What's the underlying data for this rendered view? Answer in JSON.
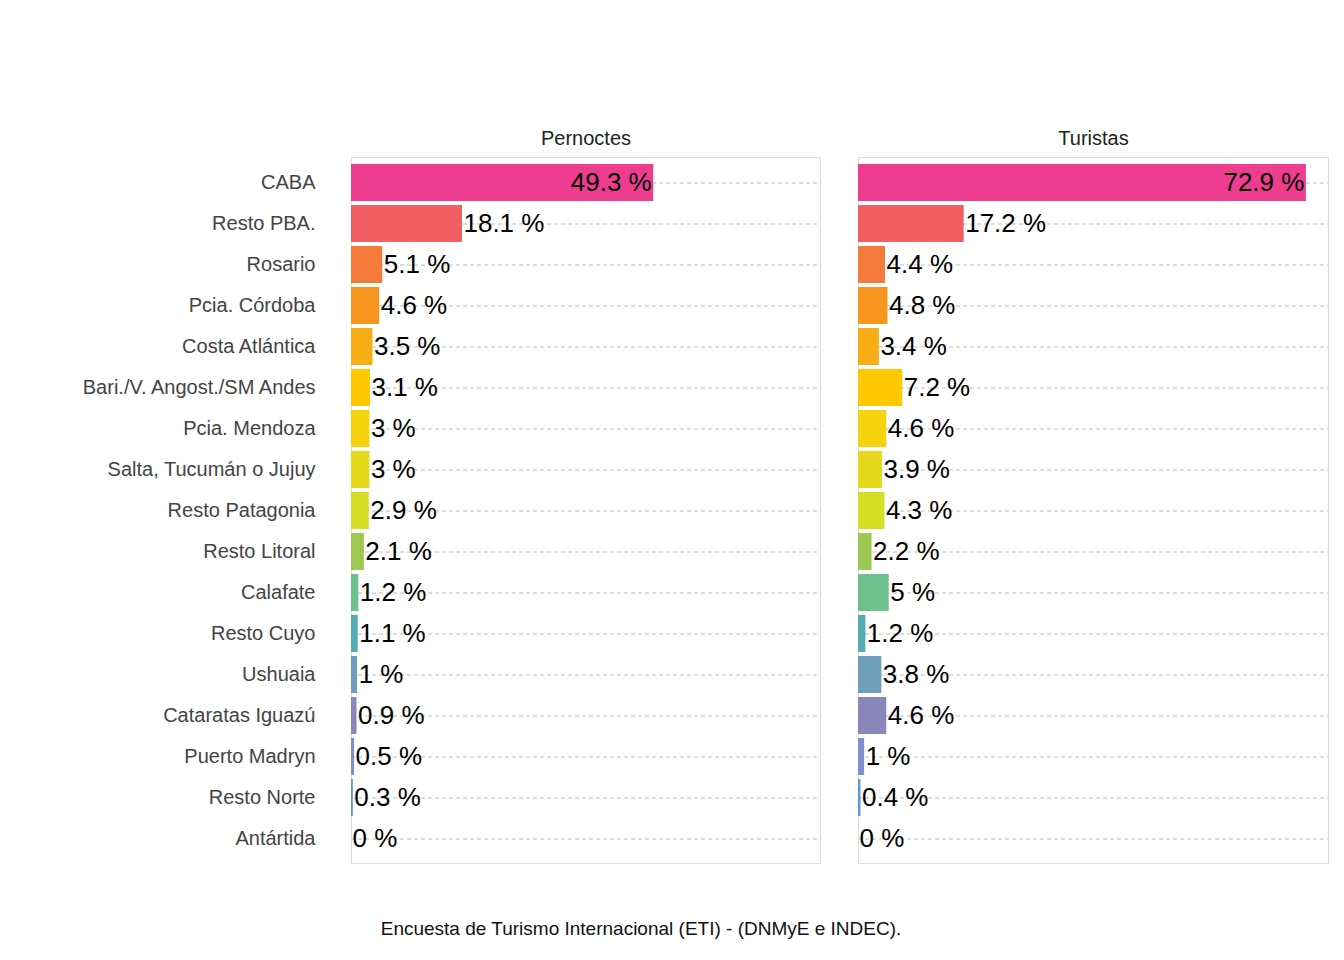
{
  "chart_data": [
    {
      "type": "bar",
      "title": "Pernoctes",
      "orientation": "horizontal",
      "data_labels": true,
      "grid": true,
      "tick_labels": "y",
      "categories": [
        "CABA",
        "Resto PBA.",
        "Rosario",
        "Pcia. Córdoba",
        "Costa Atlántica",
        "Bari./V. Angost./SM Andes",
        "Pcia. Mendoza",
        "Salta, Tucumán o Jujuy",
        "Resto Patagonia",
        "Resto Litoral",
        "Calafate",
        "Resto Cuyo",
        "Ushuaia",
        "Cataratas Iguazú",
        "Puerto Madryn",
        "Resto Norte",
        "Antártida"
      ],
      "values": [
        49.3,
        18.1,
        5.1,
        4.6,
        3.5,
        3.1,
        3,
        3,
        2.9,
        2.1,
        1.2,
        1.1,
        1,
        0.9,
        0.5,
        0.3,
        0
      ],
      "value_labels": [
        "49.3 %",
        "18.1 %",
        "5.1 %",
        "4.6 %",
        "3.5 %",
        "3.1 %",
        "3 %",
        "3 %",
        "2.9 %",
        "2.1 %",
        "1.2 %",
        "1.1 %",
        "1 %",
        "0.9 %",
        "0.5 %",
        "0.3 %",
        "0 %"
      ],
      "colors": [
        "#ee3d8f",
        "#f15f62",
        "#f47b3b",
        "#f7951f",
        "#faae16",
        "#ffc800",
        "#f5d30c",
        "#e6d91b",
        "#d4df25",
        "#9dc854",
        "#6ec18c",
        "#55adb3",
        "#6f9fba",
        "#8b87ba",
        "#7f8fcc",
        "#5a9cd0",
        "#4a90c8"
      ],
      "xlim": [
        0,
        76.5
      ]
    },
    {
      "type": "bar",
      "title": "Turistas",
      "orientation": "horizontal",
      "data_labels": true,
      "grid": true,
      "tick_labels": false,
      "categories": [
        "CABA",
        "Resto PBA.",
        "Rosario",
        "Pcia. Córdoba",
        "Costa Atlántica",
        "Bari./V. Angost./SM Andes",
        "Pcia. Mendoza",
        "Salta, Tucumán o Jujuy",
        "Resto Patagonia",
        "Resto Litoral",
        "Calafate",
        "Resto Cuyo",
        "Ushuaia",
        "Cataratas Iguazú",
        "Puerto Madryn",
        "Resto Norte",
        "Antártida"
      ],
      "values": [
        72.9,
        17.2,
        4.4,
        4.8,
        3.4,
        7.2,
        4.6,
        3.9,
        4.3,
        2.2,
        5,
        1.2,
        3.8,
        4.6,
        1,
        0.4,
        0
      ],
      "value_labels": [
        "72.9 %",
        "17.2 %",
        "4.4 %",
        "4.8 %",
        "3.4 %",
        "7.2 %",
        "4.6 %",
        "3.9 %",
        "4.3 %",
        "2.2 %",
        "5 %",
        "1.2 %",
        "3.8 %",
        "4.6 %",
        "1 %",
        "0.4 %",
        "0 %"
      ],
      "colors": [
        "#ee3d8f",
        "#f15f62",
        "#f47b3b",
        "#f7951f",
        "#faae16",
        "#ffc800",
        "#f5d30c",
        "#e6d91b",
        "#d4df25",
        "#9dc854",
        "#6ec18c",
        "#55adb3",
        "#6f9fba",
        "#8b87ba",
        "#7f8fcc",
        "#5a9cd0",
        "#4a90c8"
      ],
      "xlim": [
        0,
        76.5
      ]
    }
  ],
  "caption": "Encuesta de Turismo Internacional (ETI) - (DNMyE e INDEC)."
}
